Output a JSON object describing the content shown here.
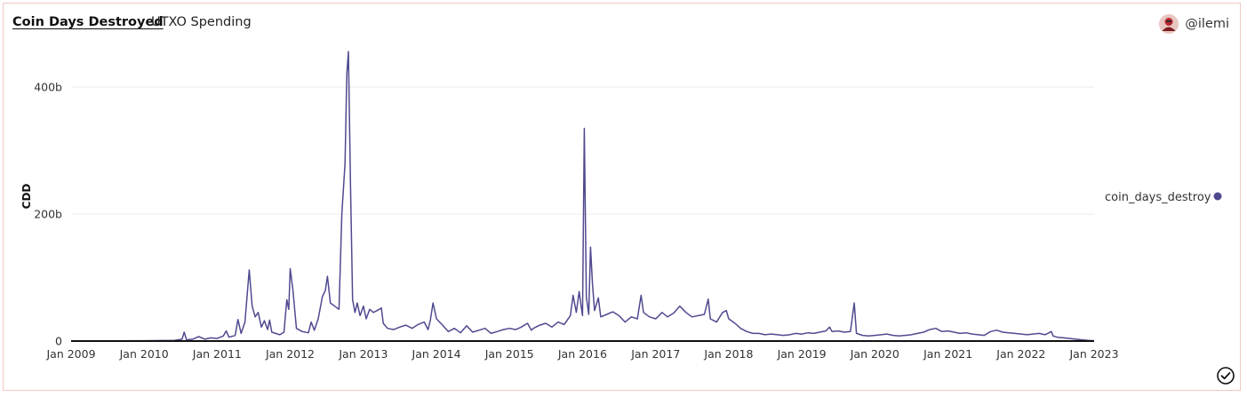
{
  "header": {
    "title": "Coin Days Destroyed",
    "subtitle": "UTXO Spending",
    "author": "@ilemi"
  },
  "colors": {
    "series": "#4f4a8f",
    "grid": "#ececec",
    "baseline": "#111111",
    "border": "#f0c9c4"
  },
  "icons": {
    "avatar": "user-avatar-icon",
    "done": "check-circle-icon"
  },
  "chart_data": {
    "type": "line",
    "title": "",
    "xlabel": "",
    "ylabel": "CDD",
    "xlim": [
      "2009-01-01",
      "2023-01-01"
    ],
    "ylim": [
      0,
      460
    ],
    "y_unit": "b",
    "grid": true,
    "legend_position": "right",
    "x_tick_labels": [
      "Jan 2009",
      "Jan 2010",
      "Jan 2011",
      "Jan 2012",
      "Jan 2013",
      "Jan 2014",
      "Jan 2015",
      "Jan 2016",
      "Jan 2017",
      "Jan 2018",
      "Jan 2019",
      "Jan 2020",
      "Jan 2021",
      "Jan 2022",
      "Jan 2023"
    ],
    "y_ticks": [
      0,
      200,
      400
    ],
    "y_tick_labels": [
      "0",
      "200b",
      "400b"
    ],
    "series": [
      {
        "name": "coin_days_destroy",
        "points": [
          [
            "2009-01-01",
            0
          ],
          [
            "2009-06-01",
            0.3
          ],
          [
            "2010-01-01",
            0.5
          ],
          [
            "2010-06-01",
            1
          ],
          [
            "2010-07-10",
            3
          ],
          [
            "2010-07-20",
            14
          ],
          [
            "2010-08-01",
            2
          ],
          [
            "2010-09-01",
            3
          ],
          [
            "2010-10-01",
            7
          ],
          [
            "2010-11-01",
            3
          ],
          [
            "2010-12-01",
            5
          ],
          [
            "2011-01-01",
            4
          ],
          [
            "2011-02-01",
            8
          ],
          [
            "2011-02-15",
            16
          ],
          [
            "2011-03-01",
            6
          ],
          [
            "2011-04-01",
            9
          ],
          [
            "2011-04-15",
            34
          ],
          [
            "2011-05-01",
            12
          ],
          [
            "2011-05-20",
            30
          ],
          [
            "2011-06-10",
            112
          ],
          [
            "2011-06-25",
            55
          ],
          [
            "2011-07-10",
            38
          ],
          [
            "2011-07-25",
            45
          ],
          [
            "2011-08-10",
            22
          ],
          [
            "2011-08-25",
            32
          ],
          [
            "2011-09-10",
            18
          ],
          [
            "2011-09-20",
            33
          ],
          [
            "2011-10-01",
            14
          ],
          [
            "2011-10-20",
            12
          ],
          [
            "2011-11-10",
            10
          ],
          [
            "2011-12-01",
            14
          ],
          [
            "2011-12-15",
            65
          ],
          [
            "2011-12-25",
            50
          ],
          [
            "2012-01-01",
            114
          ],
          [
            "2012-01-15",
            80
          ],
          [
            "2012-02-01",
            20
          ],
          [
            "2012-03-01",
            15
          ],
          [
            "2012-04-01",
            13
          ],
          [
            "2012-04-15",
            30
          ],
          [
            "2012-05-01",
            17
          ],
          [
            "2012-05-20",
            35
          ],
          [
            "2012-06-10",
            70
          ],
          [
            "2012-06-25",
            80
          ],
          [
            "2012-07-05",
            102
          ],
          [
            "2012-07-20",
            60
          ],
          [
            "2012-08-10",
            55
          ],
          [
            "2012-09-01",
            50
          ],
          [
            "2012-09-15",
            200
          ],
          [
            "2012-10-01",
            280
          ],
          [
            "2012-10-10",
            420
          ],
          [
            "2012-10-18",
            456
          ],
          [
            "2012-10-28",
            250
          ],
          [
            "2012-11-08",
            65
          ],
          [
            "2012-11-20",
            45
          ],
          [
            "2012-12-01",
            60
          ],
          [
            "2012-12-15",
            40
          ],
          [
            "2013-01-01",
            55
          ],
          [
            "2013-01-15",
            35
          ],
          [
            "2013-02-01",
            50
          ],
          [
            "2013-02-20",
            45
          ],
          [
            "2013-03-10",
            48
          ],
          [
            "2013-04-01",
            52
          ],
          [
            "2013-04-10",
            28
          ],
          [
            "2013-05-01",
            20
          ],
          [
            "2013-06-01",
            18
          ],
          [
            "2013-07-01",
            22
          ],
          [
            "2013-08-01",
            25
          ],
          [
            "2013-09-01",
            20
          ],
          [
            "2013-10-01",
            26
          ],
          [
            "2013-11-01",
            30
          ],
          [
            "2013-11-20",
            18
          ],
          [
            "2013-12-01",
            32
          ],
          [
            "2013-12-15",
            60
          ],
          [
            "2014-01-01",
            35
          ],
          [
            "2014-02-01",
            25
          ],
          [
            "2014-03-01",
            15
          ],
          [
            "2014-04-01",
            20
          ],
          [
            "2014-05-01",
            13
          ],
          [
            "2014-06-01",
            24
          ],
          [
            "2014-07-01",
            14
          ],
          [
            "2014-08-01",
            17
          ],
          [
            "2014-09-01",
            20
          ],
          [
            "2014-10-01",
            12
          ],
          [
            "2014-11-01",
            15
          ],
          [
            "2014-12-01",
            18
          ],
          [
            "2015-01-01",
            20
          ],
          [
            "2015-02-01",
            18
          ],
          [
            "2015-03-01",
            22
          ],
          [
            "2015-04-01",
            28
          ],
          [
            "2015-04-20",
            17
          ],
          [
            "2015-05-01",
            20
          ],
          [
            "2015-06-01",
            25
          ],
          [
            "2015-07-01",
            28
          ],
          [
            "2015-08-01",
            22
          ],
          [
            "2015-09-01",
            30
          ],
          [
            "2015-10-01",
            26
          ],
          [
            "2015-11-01",
            40
          ],
          [
            "2015-11-15",
            72
          ],
          [
            "2015-12-01",
            45
          ],
          [
            "2015-12-15",
            78
          ],
          [
            "2015-12-25",
            55
          ],
          [
            "2016-01-01",
            40
          ],
          [
            "2016-01-10",
            335
          ],
          [
            "2016-01-20",
            70
          ],
          [
            "2016-02-01",
            42
          ],
          [
            "2016-02-10",
            148
          ],
          [
            "2016-02-20",
            90
          ],
          [
            "2016-03-01",
            48
          ],
          [
            "2016-03-20",
            68
          ],
          [
            "2016-04-01",
            38
          ],
          [
            "2016-05-01",
            42
          ],
          [
            "2016-06-01",
            46
          ],
          [
            "2016-07-01",
            40
          ],
          [
            "2016-08-01",
            30
          ],
          [
            "2016-09-01",
            38
          ],
          [
            "2016-10-01",
            35
          ],
          [
            "2016-10-20",
            72
          ],
          [
            "2016-11-01",
            45
          ],
          [
            "2016-12-01",
            38
          ],
          [
            "2017-01-01",
            35
          ],
          [
            "2017-02-01",
            45
          ],
          [
            "2017-03-01",
            38
          ],
          [
            "2017-04-01",
            44
          ],
          [
            "2017-05-01",
            55
          ],
          [
            "2017-06-01",
            45
          ],
          [
            "2017-07-01",
            38
          ],
          [
            "2017-08-01",
            40
          ],
          [
            "2017-09-01",
            42
          ],
          [
            "2017-09-20",
            66
          ],
          [
            "2017-10-01",
            35
          ],
          [
            "2017-11-01",
            30
          ],
          [
            "2017-12-01",
            45
          ],
          [
            "2017-12-20",
            48
          ],
          [
            "2018-01-01",
            35
          ],
          [
            "2018-02-01",
            28
          ],
          [
            "2018-03-01",
            20
          ],
          [
            "2018-04-01",
            15
          ],
          [
            "2018-05-01",
            12
          ],
          [
            "2018-06-01",
            12
          ],
          [
            "2018-07-01",
            10
          ],
          [
            "2018-08-01",
            11
          ],
          [
            "2018-09-01",
            10
          ],
          [
            "2018-10-01",
            9
          ],
          [
            "2018-11-01",
            10
          ],
          [
            "2018-12-01",
            12
          ],
          [
            "2019-01-01",
            11
          ],
          [
            "2019-02-01",
            13
          ],
          [
            "2019-03-01",
            12
          ],
          [
            "2019-04-01",
            14
          ],
          [
            "2019-05-01",
            16
          ],
          [
            "2019-05-20",
            22
          ],
          [
            "2019-06-01",
            15
          ],
          [
            "2019-07-01",
            16
          ],
          [
            "2019-08-01",
            14
          ],
          [
            "2019-09-01",
            15
          ],
          [
            "2019-09-20",
            60
          ],
          [
            "2019-10-01",
            12
          ],
          [
            "2019-11-01",
            9
          ],
          [
            "2019-12-01",
            8
          ],
          [
            "2020-01-01",
            9
          ],
          [
            "2020-02-01",
            10
          ],
          [
            "2020-03-01",
            11
          ],
          [
            "2020-04-01",
            9
          ],
          [
            "2020-05-01",
            8
          ],
          [
            "2020-06-01",
            9
          ],
          [
            "2020-07-01",
            10
          ],
          [
            "2020-08-01",
            12
          ],
          [
            "2020-09-01",
            14
          ],
          [
            "2020-10-01",
            18
          ],
          [
            "2020-11-01",
            20
          ],
          [
            "2020-12-01",
            15
          ],
          [
            "2021-01-01",
            16
          ],
          [
            "2021-02-01",
            14
          ],
          [
            "2021-03-01",
            12
          ],
          [
            "2021-04-01",
            13
          ],
          [
            "2021-05-01",
            11
          ],
          [
            "2021-06-01",
            10
          ],
          [
            "2021-07-01",
            9
          ],
          [
            "2021-08-01",
            15
          ],
          [
            "2021-09-01",
            17
          ],
          [
            "2021-10-01",
            14
          ],
          [
            "2021-11-01",
            13
          ],
          [
            "2021-12-01",
            12
          ],
          [
            "2022-01-01",
            11
          ],
          [
            "2022-02-01",
            10
          ],
          [
            "2022-03-01",
            11
          ],
          [
            "2022-04-01",
            12
          ],
          [
            "2022-05-01",
            10
          ],
          [
            "2022-06-01",
            15
          ],
          [
            "2022-06-10",
            8
          ],
          [
            "2022-07-01",
            6
          ],
          [
            "2022-08-01",
            5
          ],
          [
            "2022-09-01",
            4
          ],
          [
            "2022-10-01",
            3
          ],
          [
            "2022-11-01",
            2
          ],
          [
            "2022-12-01",
            1
          ],
          [
            "2023-01-01",
            0.5
          ]
        ]
      }
    ]
  }
}
